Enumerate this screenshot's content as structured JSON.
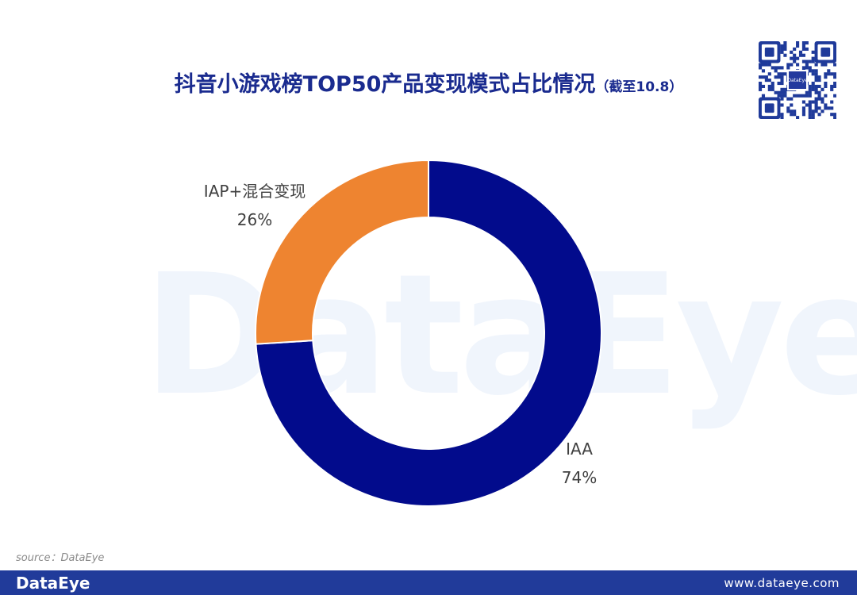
{
  "title": {
    "main": "抖音小游戏榜TOP50产品变现模式占比情况",
    "note": "（截至10.8）"
  },
  "watermark": "DataEye",
  "qr_logo": "DataEye",
  "chart_data": {
    "type": "pie",
    "donut": true,
    "slices": [
      {
        "label": "IAA",
        "value": 74,
        "display": "74%",
        "color": "#020b8c"
      },
      {
        "label": "IAP+混合变现",
        "value": 26,
        "display": "26%",
        "color": "#ee8430"
      }
    ],
    "legend": "none"
  },
  "source": "source：DataEye",
  "footer": {
    "brand": "DataEye",
    "url": "www.dataeye.com"
  }
}
